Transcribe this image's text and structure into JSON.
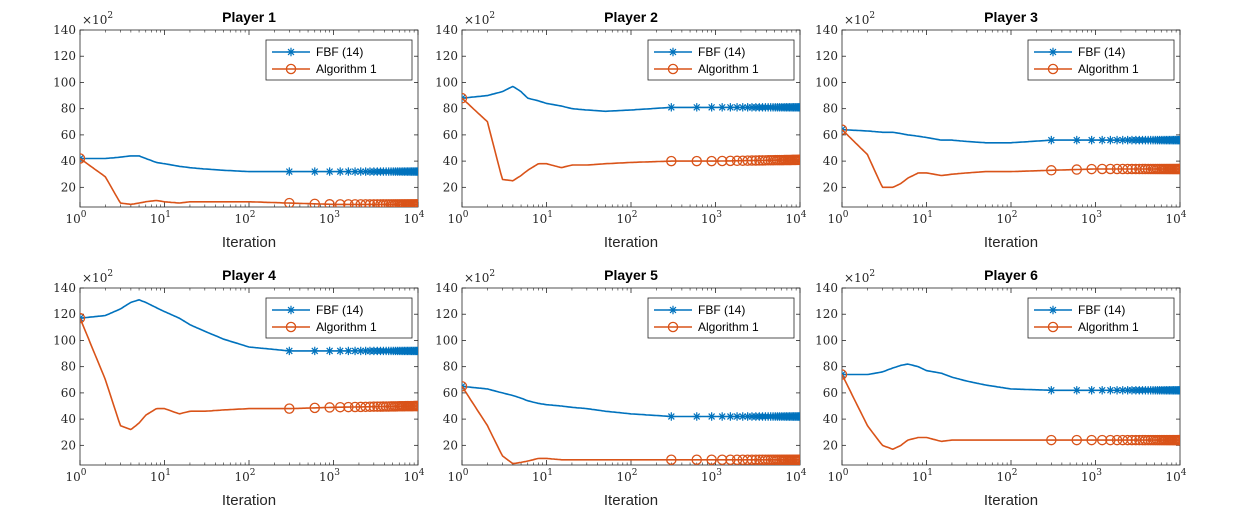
{
  "figure": {
    "scale_label": "×10",
    "scale_exponent": "2",
    "colors": {
      "fbf": "#0072BD",
      "alg": "#D95319",
      "axis": "#262626"
    }
  },
  "chart_data": [
    {
      "type": "line",
      "title": "Player 1",
      "xlabel": "Iteration",
      "ylabel": "",
      "xscale": "log",
      "xlim": [
        1,
        10000
      ],
      "ylim": [
        5,
        140
      ],
      "yticks": [
        20,
        40,
        60,
        80,
        100,
        120,
        140
      ],
      "xticks": [
        {
          "base": "10",
          "exp": "0"
        },
        {
          "base": "10",
          "exp": "1"
        },
        {
          "base": "10",
          "exp": "2"
        },
        {
          "base": "10",
          "exp": "3"
        },
        {
          "base": "10",
          "exp": "4"
        }
      ],
      "legend_position": "top-right",
      "series": [
        {
          "name": "FBF (14)",
          "marker": "asterisk",
          "x": [
            1,
            2,
            3,
            4,
            5,
            6,
            8,
            10,
            15,
            20,
            30,
            50,
            100,
            300,
            1000,
            10000
          ],
          "y": [
            42,
            42,
            43,
            44,
            44,
            42,
            39,
            38,
            36,
            35,
            34,
            33,
            32,
            32,
            32,
            32
          ]
        },
        {
          "name": "Algorithm 1",
          "marker": "circle",
          "x": [
            1,
            2,
            3,
            4,
            5,
            6,
            8,
            10,
            15,
            20,
            30,
            50,
            100,
            300,
            1000,
            10000
          ],
          "y": [
            42,
            28,
            8,
            7,
            8,
            9,
            10,
            9,
            8,
            9,
            9,
            9,
            9,
            8,
            7,
            7
          ]
        }
      ]
    },
    {
      "type": "line",
      "title": "Player 2",
      "xlabel": "Iteration",
      "ylabel": "",
      "xscale": "log",
      "xlim": [
        1,
        10000
      ],
      "ylim": [
        5,
        140
      ],
      "yticks": [
        20,
        40,
        60,
        80,
        100,
        120,
        140
      ],
      "xticks": [
        {
          "base": "10",
          "exp": "0"
        },
        {
          "base": "10",
          "exp": "1"
        },
        {
          "base": "10",
          "exp": "2"
        },
        {
          "base": "10",
          "exp": "3"
        },
        {
          "base": "10",
          "exp": "4"
        }
      ],
      "legend_position": "top-right",
      "series": [
        {
          "name": "FBF (14)",
          "marker": "asterisk",
          "x": [
            1,
            2,
            3,
            4,
            5,
            6,
            8,
            10,
            15,
            20,
            30,
            50,
            100,
            300,
            1000,
            10000
          ],
          "y": [
            88,
            90,
            93,
            97,
            93,
            88,
            86,
            84,
            82,
            80,
            79,
            78,
            79,
            81,
            81,
            81
          ]
        },
        {
          "name": "Algorithm 1",
          "marker": "circle",
          "x": [
            1,
            2,
            3,
            4,
            5,
            6,
            8,
            10,
            15,
            20,
            30,
            50,
            100,
            300,
            1000,
            10000
          ],
          "y": [
            88,
            70,
            26,
            25,
            29,
            33,
            38,
            38,
            35,
            37,
            37,
            38,
            39,
            40,
            40,
            41
          ]
        }
      ]
    },
    {
      "type": "line",
      "title": "Player 3",
      "xlabel": "Iteration",
      "ylabel": "",
      "xscale": "log",
      "xlim": [
        1,
        10000
      ],
      "ylim": [
        5,
        140
      ],
      "yticks": [
        20,
        40,
        60,
        80,
        100,
        120,
        140
      ],
      "xticks": [
        {
          "base": "10",
          "exp": "0"
        },
        {
          "base": "10",
          "exp": "1"
        },
        {
          "base": "10",
          "exp": "2"
        },
        {
          "base": "10",
          "exp": "3"
        },
        {
          "base": "10",
          "exp": "4"
        }
      ],
      "legend_position": "top-right",
      "series": [
        {
          "name": "FBF (14)",
          "marker": "asterisk",
          "x": [
            1,
            2,
            3,
            4,
            5,
            6,
            8,
            10,
            15,
            20,
            30,
            50,
            100,
            300,
            1000,
            10000
          ],
          "y": [
            64,
            63,
            62,
            62,
            61,
            60,
            59,
            58,
            56,
            56,
            55,
            54,
            54,
            56,
            56,
            56
          ]
        },
        {
          "name": "Algorithm 1",
          "marker": "circle",
          "x": [
            1,
            2,
            3,
            4,
            5,
            6,
            8,
            10,
            15,
            20,
            30,
            50,
            100,
            300,
            1000,
            10000
          ],
          "y": [
            64,
            45,
            20,
            20,
            23,
            27,
            31,
            31,
            29,
            30,
            31,
            32,
            32,
            33,
            34,
            34
          ]
        }
      ]
    },
    {
      "type": "line",
      "title": "Player 4",
      "xlabel": "Iteration",
      "ylabel": "",
      "xscale": "log",
      "xlim": [
        1,
        10000
      ],
      "ylim": [
        5,
        140
      ],
      "yticks": [
        20,
        40,
        60,
        80,
        100,
        120,
        140
      ],
      "xticks": [
        {
          "base": "10",
          "exp": "0"
        },
        {
          "base": "10",
          "exp": "1"
        },
        {
          "base": "10",
          "exp": "2"
        },
        {
          "base": "10",
          "exp": "3"
        },
        {
          "base": "10",
          "exp": "4"
        }
      ],
      "legend_position": "top-right",
      "series": [
        {
          "name": "FBF (14)",
          "marker": "asterisk",
          "x": [
            1,
            2,
            3,
            4,
            5,
            6,
            8,
            10,
            15,
            20,
            30,
            50,
            100,
            300,
            1000,
            10000
          ],
          "y": [
            117,
            119,
            124,
            129,
            131,
            129,
            125,
            122,
            117,
            112,
            107,
            101,
            95,
            92,
            92,
            92
          ]
        },
        {
          "name": "Algorithm 1",
          "marker": "circle",
          "x": [
            1,
            2,
            3,
            4,
            5,
            6,
            8,
            10,
            15,
            20,
            30,
            50,
            100,
            300,
            1000,
            10000
          ],
          "y": [
            117,
            70,
            35,
            32,
            37,
            43,
            48,
            48,
            44,
            46,
            46,
            47,
            48,
            48,
            49,
            50
          ]
        }
      ]
    },
    {
      "type": "line",
      "title": "Player 5",
      "xlabel": "Iteration",
      "ylabel": "",
      "xscale": "log",
      "xlim": [
        1,
        10000
      ],
      "ylim": [
        5,
        140
      ],
      "yticks": [
        20,
        40,
        60,
        80,
        100,
        120,
        140
      ],
      "xticks": [
        {
          "base": "10",
          "exp": "0"
        },
        {
          "base": "10",
          "exp": "1"
        },
        {
          "base": "10",
          "exp": "2"
        },
        {
          "base": "10",
          "exp": "3"
        },
        {
          "base": "10",
          "exp": "4"
        }
      ],
      "legend_position": "top-right",
      "series": [
        {
          "name": "FBF (14)",
          "marker": "asterisk",
          "x": [
            1,
            2,
            3,
            4,
            5,
            6,
            8,
            10,
            15,
            20,
            30,
            50,
            100,
            300,
            1000,
            10000
          ],
          "y": [
            65,
            63,
            60,
            58,
            56,
            54,
            52,
            51,
            50,
            49,
            48,
            46,
            44,
            42,
            42,
            42
          ]
        },
        {
          "name": "Algorithm 1",
          "marker": "circle",
          "x": [
            1,
            2,
            3,
            4,
            5,
            6,
            8,
            10,
            15,
            20,
            30,
            50,
            100,
            300,
            1000,
            10000
          ],
          "y": [
            65,
            35,
            12,
            6,
            7,
            8,
            10,
            10,
            9,
            9,
            9,
            9,
            9,
            9,
            9,
            9
          ]
        }
      ]
    },
    {
      "type": "line",
      "title": "Player 6",
      "xlabel": "Iteration",
      "ylabel": "",
      "xscale": "log",
      "xlim": [
        1,
        10000
      ],
      "ylim": [
        5,
        140
      ],
      "yticks": [
        20,
        40,
        60,
        80,
        100,
        120,
        140
      ],
      "xticks": [
        {
          "base": "10",
          "exp": "0"
        },
        {
          "base": "10",
          "exp": "1"
        },
        {
          "base": "10",
          "exp": "2"
        },
        {
          "base": "10",
          "exp": "3"
        },
        {
          "base": "10",
          "exp": "4"
        }
      ],
      "legend_position": "top-right",
      "series": [
        {
          "name": "FBF (14)",
          "marker": "asterisk",
          "x": [
            1,
            2,
            3,
            4,
            5,
            6,
            8,
            10,
            15,
            20,
            30,
            50,
            100,
            300,
            1000,
            10000
          ],
          "y": [
            74,
            74,
            76,
            79,
            81,
            82,
            80,
            77,
            75,
            72,
            69,
            66,
            63,
            62,
            62,
            62
          ]
        },
        {
          "name": "Algorithm 1",
          "marker": "circle",
          "x": [
            1,
            2,
            3,
            4,
            5,
            6,
            8,
            10,
            15,
            20,
            30,
            50,
            100,
            300,
            1000,
            10000
          ],
          "y": [
            74,
            35,
            20,
            17,
            20,
            24,
            26,
            26,
            23,
            24,
            24,
            24,
            24,
            24,
            24,
            24
          ]
        }
      ]
    }
  ]
}
